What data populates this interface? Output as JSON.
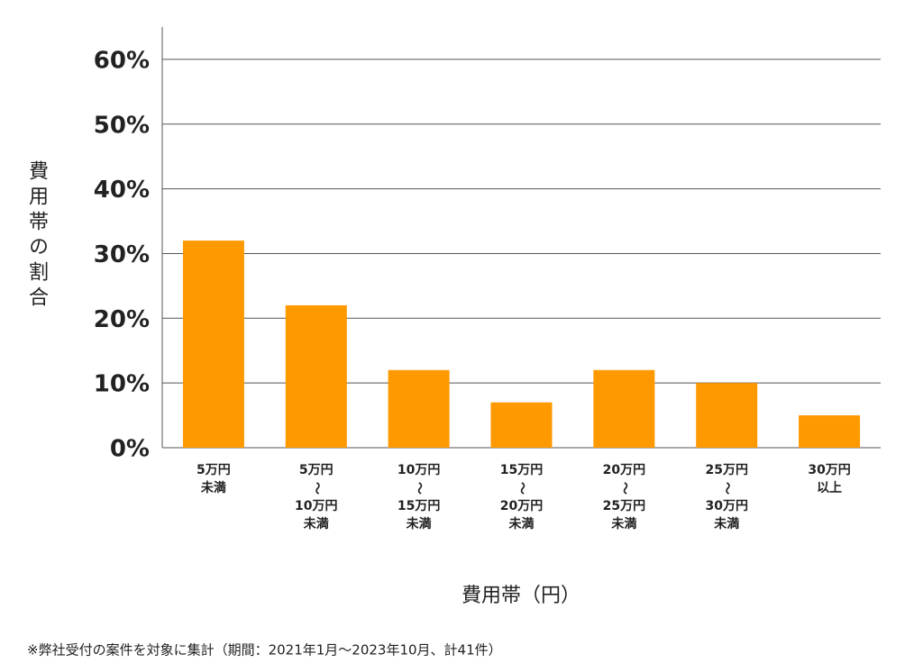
{
  "chart_data": {
    "type": "bar",
    "y_label": "費用帯の割合",
    "x_label": "費用帯（円）",
    "note": "※弊社受付の案件を対象に集計（期間：2021年1月～2023年10月、計41件）",
    "categories": [
      [
        "5万円",
        "未満"
      ],
      [
        "5万円",
        "～",
        "10万円",
        "未満"
      ],
      [
        "10万円",
        "～",
        "15万円",
        "未満"
      ],
      [
        "15万円",
        "～",
        "20万円",
        "未満"
      ],
      [
        "20万円",
        "～",
        "25万円",
        "未満"
      ],
      [
        "25万円",
        "～",
        "30万円",
        "未満"
      ],
      [
        "30万円",
        "以上"
      ]
    ],
    "values": [
      32,
      22,
      12,
      7,
      12,
      10,
      5
    ],
    "color": "#ff9900",
    "ylim": [
      0,
      65
    ],
    "yticks": [
      {
        "value": 0,
        "label": "0%"
      },
      {
        "value": 10,
        "label": "10%"
      },
      {
        "value": 20,
        "label": "20%"
      },
      {
        "value": 30,
        "label": "30%"
      },
      {
        "value": 40,
        "label": "40%"
      },
      {
        "value": 50,
        "label": "50%"
      },
      {
        "value": 60,
        "label": "60%"
      }
    ],
    "grid": true
  }
}
